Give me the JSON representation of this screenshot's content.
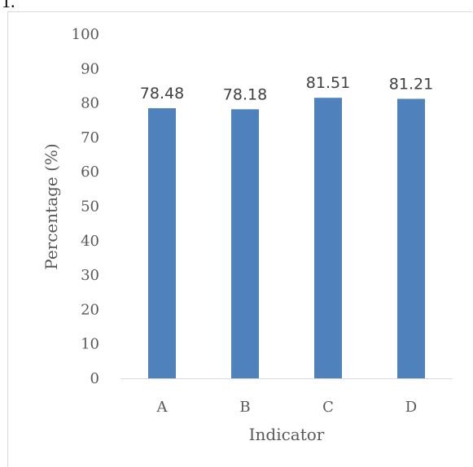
{
  "fragment_text": "1.",
  "chart_data": {
    "type": "bar",
    "title": "",
    "xlabel": "Indicator",
    "ylabel": "Percentage (%)",
    "categories": [
      "A",
      "B",
      "C",
      "D"
    ],
    "values": [
      78.48,
      78.18,
      81.51,
      81.21
    ],
    "data_labels": [
      "78.48",
      "78.18",
      "81.51",
      "81.21"
    ],
    "ylim": [
      0,
      100
    ],
    "yticks": [
      "0",
      "10",
      "20",
      "30",
      "40",
      "50",
      "60",
      "70",
      "80",
      "90",
      "100"
    ],
    "grid": false,
    "legend": "none",
    "bar_color": "#4f81bd",
    "axis_color": "#d9d9d9"
  }
}
